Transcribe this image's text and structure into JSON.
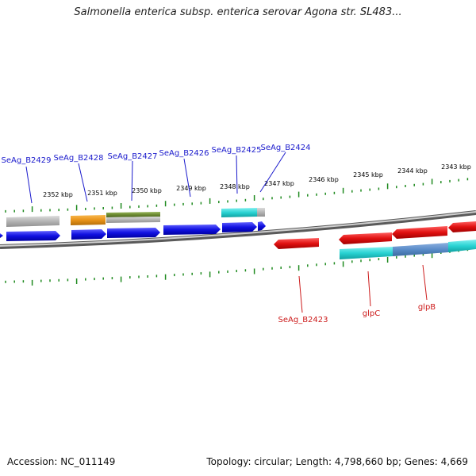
{
  "title": "Salmonella enterica subsp. enterica serovar Agona str. SL483...",
  "footer": {
    "accession": "Accession: NC_011149",
    "topology": "Topology: circular; Length: 4,798,660 bp; Genes: 4,669"
  },
  "colors": {
    "backbone": "#8a8a8a",
    "ticks": "#1f8a1f",
    "label_forward": "#1a1acc",
    "label_reverse": "#cc1a1a",
    "cds_forward": "#1010e0",
    "cds_reverse": "#e01010",
    "gray_feature": "#b4b4b4",
    "orange_feature": "#e89318",
    "olive_feature": "#6e8c32",
    "cyan_feature": "#28d2d2",
    "steel_feature": "#5a8cc8"
  },
  "kbp_labels": [
    {
      "text": "2352 kbp",
      "pos": 2352
    },
    {
      "text": "2351 kbp",
      "pos": 2351
    },
    {
      "text": "2350 kbp",
      "pos": 2350
    },
    {
      "text": "2349 kbp",
      "pos": 2349
    },
    {
      "text": "2348 kbp",
      "pos": 2348
    },
    {
      "text": "2347 kbp",
      "pos": 2347
    },
    {
      "text": "2346 kbp",
      "pos": 2346
    },
    {
      "text": "2345 kbp",
      "pos": 2345
    },
    {
      "text": "2344 kbp",
      "pos": 2344
    },
    {
      "text": "2343 kbp",
      "pos": 2343
    }
  ],
  "genes_forward": [
    {
      "label": "SeAg_B2429"
    },
    {
      "label": "SeAg_B2428"
    },
    {
      "label": "SeAg_B2427"
    },
    {
      "label": "SeAg_B2426"
    },
    {
      "label": "SeAg_B2425"
    },
    {
      "label": "SeAg_B2424"
    }
  ],
  "genes_reverse": [
    {
      "label": "SeAg_B2423"
    },
    {
      "label": "glpC"
    },
    {
      "label": "glpB"
    }
  ]
}
